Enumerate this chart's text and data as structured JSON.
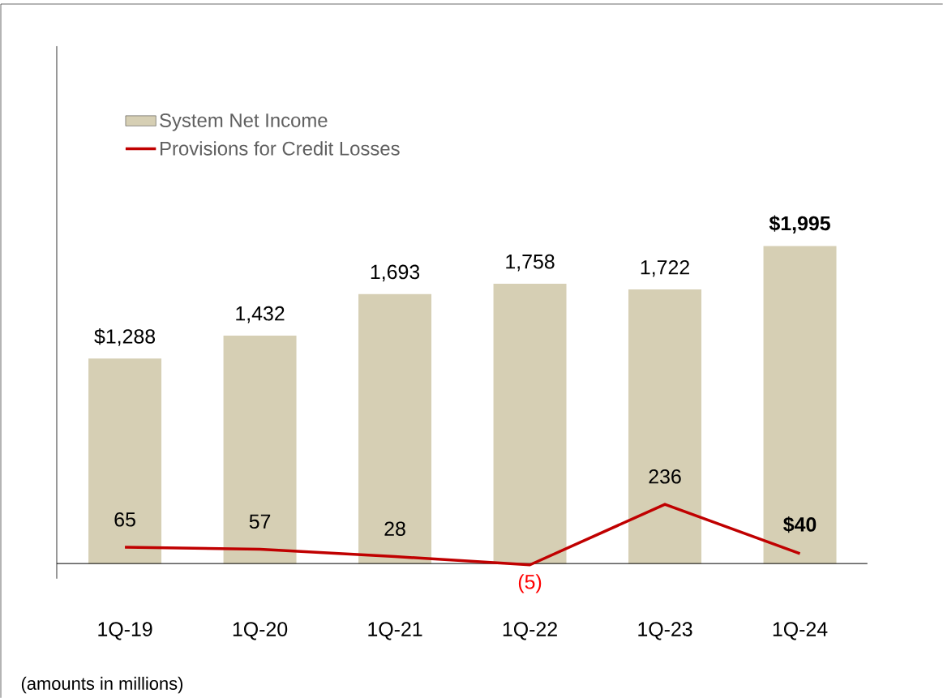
{
  "chart_data": {
    "type": "bar",
    "categories": [
      "1Q-19",
      "1Q-20",
      "1Q-21",
      "1Q-22",
      "1Q-23",
      "1Q-24"
    ],
    "series": [
      {
        "name": "System Net Income",
        "color": "#d6cfb4",
        "values": [
          1288,
          1432,
          1693,
          1758,
          1722,
          1995
        ],
        "value_labels": [
          "$1,288",
          "1,432",
          "1,693",
          "1,758",
          "1,722",
          "$1,995"
        ]
      },
      {
        "name": "Provisions for Credit Losses",
        "type": "line",
        "axis": "y2",
        "color": "#c00000",
        "values": [
          65,
          57,
          28,
          -5,
          236,
          40
        ],
        "value_labels": [
          "65",
          "57",
          "28",
          "(5)",
          "236",
          "$40"
        ]
      }
    ],
    "ylim": [
      -95,
      3250
    ],
    "y2lim": [
      -60,
      2060
    ],
    "legend": "top left",
    "annotations": [
      "(amounts in millions)"
    ]
  }
}
